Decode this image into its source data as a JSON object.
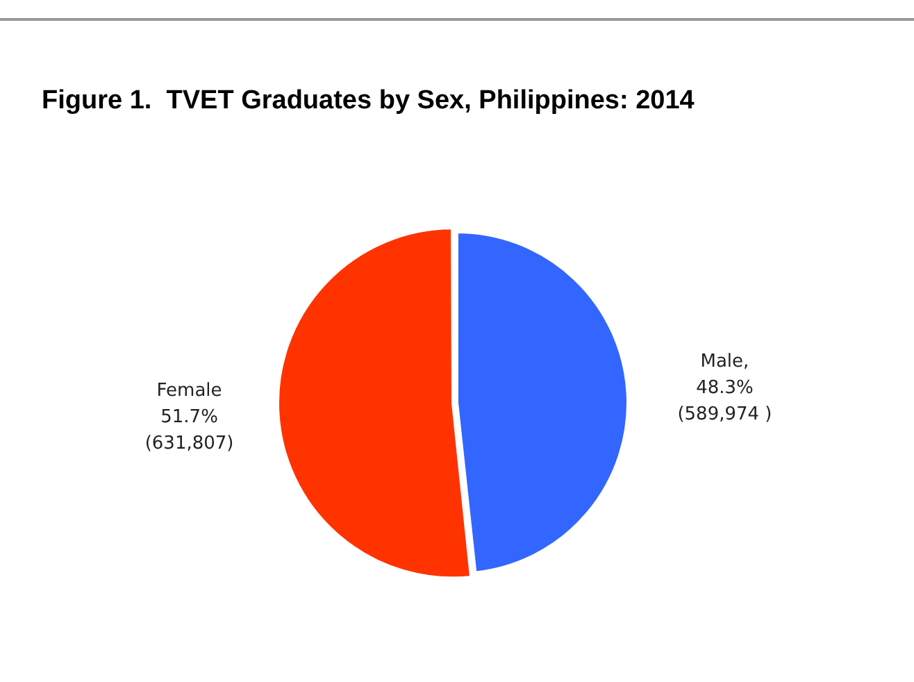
{
  "chart_data": {
    "type": "pie",
    "title": "Figure 1.  TVET Graduates by Sex, Philippines: 2014",
    "categories": [
      "Male",
      "Female"
    ],
    "values": [
      589974,
      631807
    ],
    "value_labels": [
      ",\n48.3%\n(589,974 )",
      "\n51.7%\n(631,807)"
    ],
    "colors": [
      "#3366ff",
      "#ff3300"
    ],
    "legend": false
  }
}
